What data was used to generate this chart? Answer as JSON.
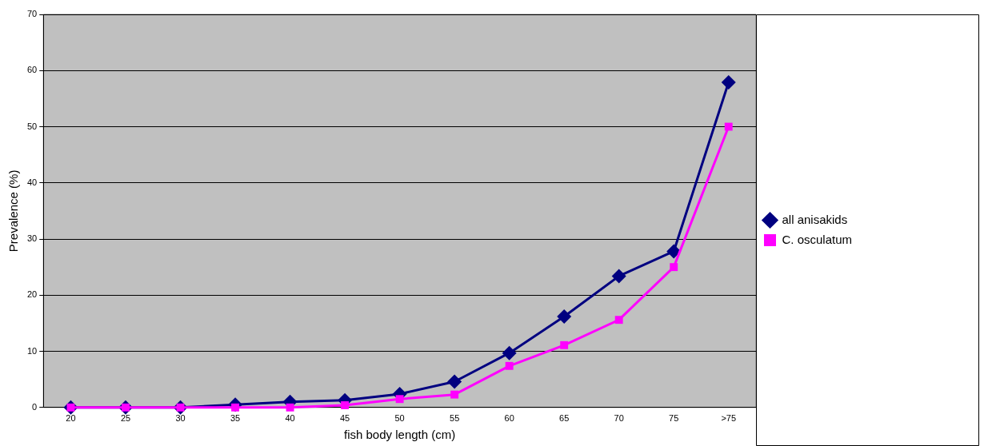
{
  "chart_data": {
    "type": "line",
    "xlabel": "fish body length (cm)",
    "ylabel": "Prevalence (%)",
    "categories": [
      "20",
      "25",
      "30",
      "35",
      "40",
      "45",
      "50",
      "55",
      "60",
      "65",
      "70",
      "75",
      ">75"
    ],
    "series": [
      {
        "name": "all anisakids",
        "color": "#000080",
        "marker": "diamond",
        "values": [
          0,
          0,
          0,
          0.5,
          1,
          1.3,
          2.4,
          4.6,
          9.7,
          16.2,
          23.4,
          27.8,
          57.9
        ]
      },
      {
        "name": "C. osculatum",
        "color": "#ff00ff",
        "marker": "square",
        "values": [
          0,
          0,
          0,
          0,
          0,
          0.4,
          1.5,
          2.3,
          7.4,
          11.1,
          15.6,
          25,
          50
        ]
      }
    ],
    "ylim": [
      0,
      70
    ],
    "yticks": [
      0,
      10,
      20,
      30,
      40,
      50,
      60,
      70
    ],
    "grid": "y",
    "legend": "right",
    "line_style": "solid"
  }
}
